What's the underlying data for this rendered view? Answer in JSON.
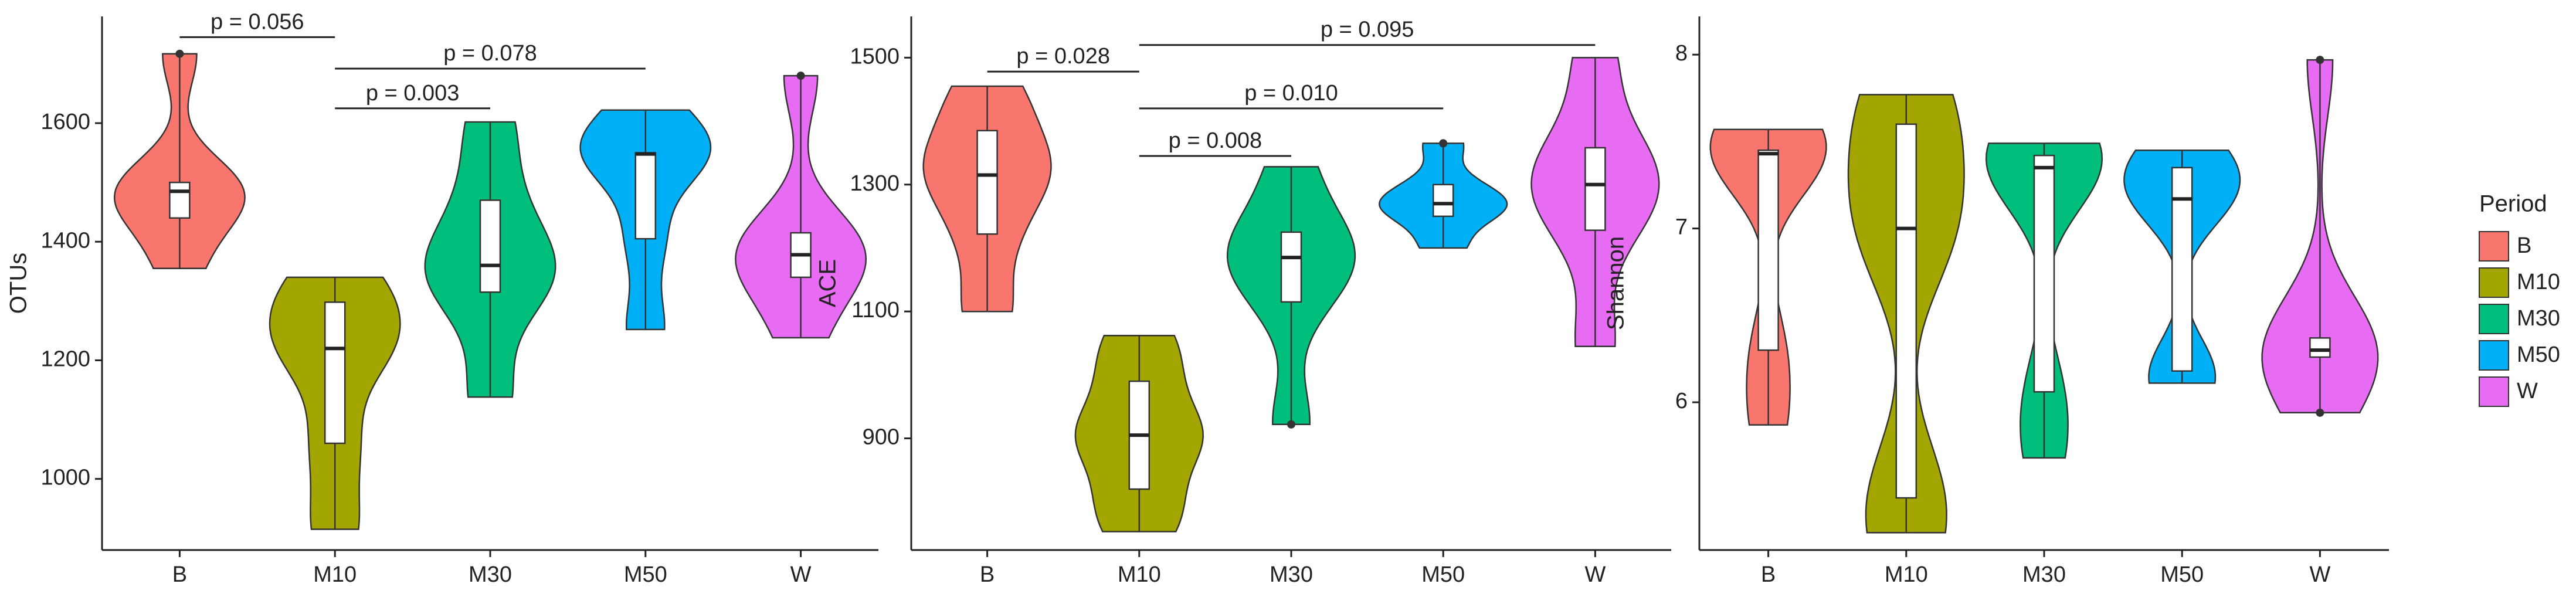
{
  "chart_data": [
    {
      "type": "violin",
      "y_label": "OTUs",
      "categories": [
        "B",
        "M10",
        "M30",
        "M50",
        "W"
      ],
      "colors": [
        "#F8766D",
        "#A3A500",
        "#00BF7D",
        "#00B0F6",
        "#E76BF3"
      ],
      "ylim": [
        880,
        1780
      ],
      "yticks": [
        1000,
        1200,
        1400,
        1600
      ],
      "groups": [
        {
          "min": 1355,
          "q1": 1440,
          "median": 1485,
          "q3": 1500,
          "max": 1717,
          "outliers": [
            1717
          ]
        },
        {
          "min": 915,
          "q1": 1060,
          "median": 1220,
          "q3": 1298,
          "max": 1340,
          "outliers": []
        },
        {
          "min": 1138,
          "q1": 1315,
          "median": 1360,
          "q3": 1470,
          "max": 1602,
          "outliers": []
        },
        {
          "min": 1252,
          "q1": 1405,
          "median": 1548,
          "q3": 1550,
          "max": 1622,
          "outliers": []
        },
        {
          "min": 1238,
          "q1": 1340,
          "median": 1378,
          "q3": 1415,
          "max": 1680,
          "outliers": [
            1680
          ]
        }
      ],
      "comparisons": [
        {
          "span": [
            0,
            1
          ],
          "y": 1745,
          "label": "p = 0.056"
        },
        {
          "span": [
            1,
            3
          ],
          "y": 1692,
          "label": "p = 0.078"
        },
        {
          "span": [
            1,
            2
          ],
          "y": 1625,
          "label": "p = 0.003"
        }
      ]
    },
    {
      "type": "violin",
      "y_label": "ACE",
      "categories": [
        "B",
        "M10",
        "M30",
        "M50",
        "W"
      ],
      "colors": [
        "#F8766D",
        "#A3A500",
        "#00BF7D",
        "#00B0F6",
        "#E76BF3"
      ],
      "ylim": [
        724,
        1565
      ],
      "yticks": [
        900,
        1100,
        1300,
        1500
      ],
      "groups": [
        {
          "min": 1100,
          "q1": 1222,
          "median": 1315,
          "q3": 1385,
          "max": 1455,
          "outliers": []
        },
        {
          "min": 753,
          "q1": 820,
          "median": 905,
          "q3": 990,
          "max": 1062,
          "outliers": []
        },
        {
          "min": 922,
          "q1": 1115,
          "median": 1185,
          "q3": 1225,
          "max": 1328,
          "outliers": [
            922
          ]
        },
        {
          "min": 1200,
          "q1": 1250,
          "median": 1270,
          "q3": 1300,
          "max": 1365,
          "outliers": [
            1365
          ]
        },
        {
          "min": 1045,
          "q1": 1228,
          "median": 1300,
          "q3": 1358,
          "max": 1500,
          "outliers": []
        }
      ],
      "comparisons": [
        {
          "span": [
            1,
            4
          ],
          "y": 1520,
          "label": "p = 0.095"
        },
        {
          "span": [
            0,
            1
          ],
          "y": 1478,
          "label": "p = 0.028"
        },
        {
          "span": [
            1,
            3
          ],
          "y": 1420,
          "label": "p = 0.010"
        },
        {
          "span": [
            1,
            2
          ],
          "y": 1345,
          "label": "p = 0.008"
        }
      ]
    },
    {
      "type": "violin",
      "y_label": "Shannon",
      "categories": [
        "B",
        "M10",
        "M30",
        "M50",
        "W"
      ],
      "colors": [
        "#F8766D",
        "#A3A500",
        "#00BF7D",
        "#00B0F6",
        "#E76BF3"
      ],
      "ylim": [
        5.15,
        8.22
      ],
      "yticks": [
        6,
        7,
        8
      ],
      "legend_title": "Period",
      "groups": [
        {
          "min": 5.87,
          "q1": 6.3,
          "median": 7.43,
          "q3": 7.45,
          "max": 7.57,
          "outliers": []
        },
        {
          "min": 5.25,
          "q1": 5.45,
          "median": 7.0,
          "q3": 7.6,
          "max": 7.77,
          "outliers": []
        },
        {
          "min": 5.68,
          "q1": 6.06,
          "median": 7.35,
          "q3": 7.42,
          "max": 7.49,
          "outliers": []
        },
        {
          "min": 6.11,
          "q1": 6.18,
          "median": 7.17,
          "q3": 7.35,
          "max": 7.45,
          "outliers": []
        },
        {
          "min": 5.94,
          "q1": 6.26,
          "median": 6.3,
          "q3": 6.37,
          "max": 7.97,
          "outliers": [
            5.94,
            7.97
          ]
        }
      ]
    }
  ]
}
